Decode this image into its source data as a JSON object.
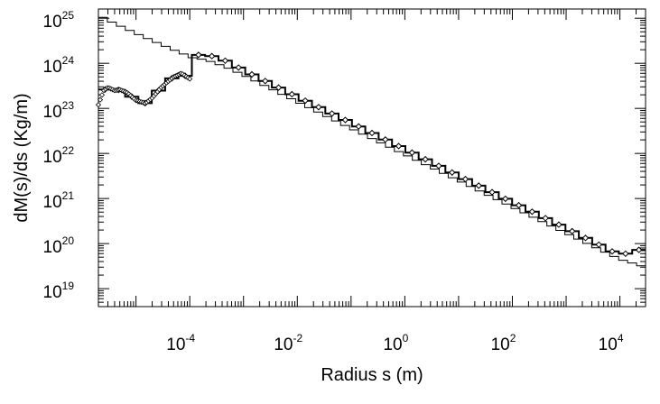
{
  "chart_data": {
    "type": "line",
    "title": "",
    "xlabel": "Radius s (m)",
    "ylabel": "dM(s)/ds (Kg/m)",
    "xscale": "log",
    "yscale": "log",
    "xlim": [
      2e-06,
      30000
    ],
    "ylim": [
      4e+18,
      1.6e+25
    ],
    "grid": false,
    "legend": "none",
    "x_ticks": [
      {
        "value": 0.0001,
        "base": "10",
        "exp": "-4"
      },
      {
        "value": 0.01,
        "base": "10",
        "exp": "-2"
      },
      {
        "value": 1,
        "base": "10",
        "exp": "0"
      },
      {
        "value": 100,
        "base": "10",
        "exp": "2"
      },
      {
        "value": 10000,
        "base": "10",
        "exp": "4"
      }
    ],
    "y_ticks": [
      {
        "value": 1e+19,
        "base": "10",
        "exp": "19"
      },
      {
        "value": 1e+20,
        "base": "10",
        "exp": "20"
      },
      {
        "value": 1e+21,
        "base": "10",
        "exp": "21"
      },
      {
        "value": 1e+22,
        "base": "10",
        "exp": "22"
      },
      {
        "value": 1e+23,
        "base": "10",
        "exp": "23"
      },
      {
        "value": 1e+24,
        "base": "10",
        "exp": "24"
      },
      {
        "value": 1e+25,
        "base": "10",
        "exp": "25"
      }
    ],
    "series": [
      {
        "style": "thin-step",
        "x": [
          2e-06,
          3e-06,
          5e-06,
          1e-05,
          2e-05,
          5e-05,
          0.0001,
          0.00012,
          0.0002,
          0.0005,
          0.001,
          0.01,
          0.1,
          1,
          10,
          100,
          1000,
          10000,
          30000
        ],
        "y": [
          1.2e+25,
          9e+24,
          6.8e+24,
          4.6e+24,
          3.2e+24,
          2e+24,
          1.4e+24,
          1.3e+24,
          1.2e+24,
          8e+23,
          5.5e+23,
          1.4e+23,
          3.6e+22,
          9.5e+21,
          2.5e+21,
          6.5e+20,
          1.7e+20,
          4.5e+19,
          3e+19
        ]
      },
      {
        "style": "thick-step-markers",
        "x": [
          2e-06,
          2.5e-06,
          3e-06,
          4e-06,
          5e-06,
          7e-06,
          1e-05,
          1.5e-05,
          2e-05,
          3e-05,
          5e-05,
          7e-05,
          0.0001,
          0.00012,
          0.0002,
          0.0005,
          0.001,
          0.01,
          0.1,
          1,
          10,
          100,
          1000,
          10000,
          30000
        ],
        "y": [
          1.2e+23,
          2.5e+23,
          2.9e+23,
          2.5e+23,
          2.6e+23,
          2.2e+23,
          1.5e+23,
          1.3e+23,
          1.7e+23,
          3e+23,
          5e+23,
          6e+23,
          4.5e+23,
          1.5e+24,
          1.6e+24,
          1.1e+24,
          7e+23,
          1.8e+23,
          4.8e+22,
          1.25e+22,
          3.2e+21,
          8.3e+20,
          2.2e+20,
          5.5e+19,
          8e+19
        ]
      }
    ]
  }
}
